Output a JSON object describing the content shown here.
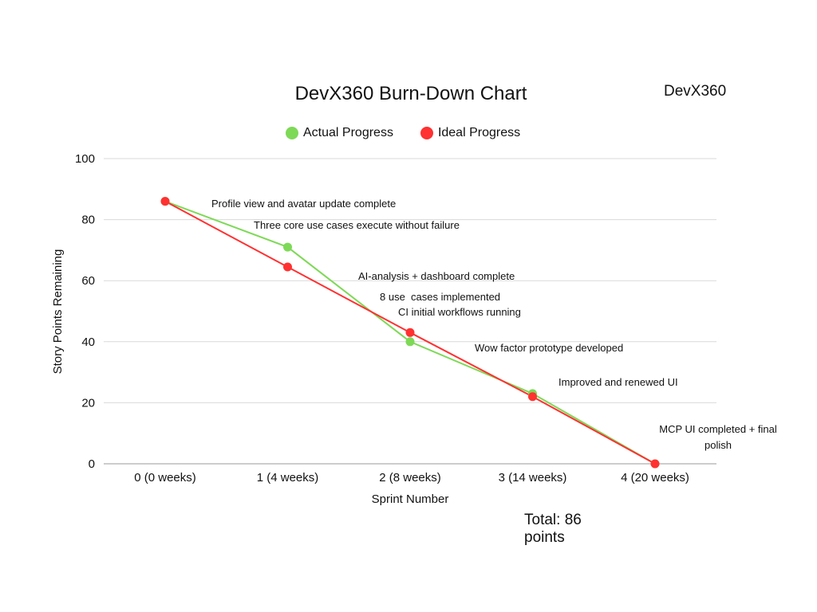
{
  "brand": "DevX360",
  "total": "Total: 86 points",
  "legend": [
    {
      "label": "Actual Progress",
      "color": "#7ed957"
    },
    {
      "label": "Ideal Progress",
      "color": "#ff3131"
    }
  ],
  "chart_data": {
    "type": "line",
    "title": "DevX360 Burn-Down Chart",
    "xlabel": "Sprint Number",
    "ylabel": "Story Points Remaining",
    "categories": [
      "0 (0 weeks)",
      "1 (4 weeks)",
      "2 (8 weeks)",
      "3 (14 weeks)",
      "4 (20 weeks)"
    ],
    "ylim": [
      0,
      100
    ],
    "yticks": [
      0,
      20,
      40,
      60,
      80,
      100
    ],
    "grid": true,
    "legend_position": "top",
    "series": [
      {
        "name": "Actual Progress",
        "color": "#7ed957",
        "values": [
          86,
          71,
          40,
          23,
          0
        ]
      },
      {
        "name": "Ideal Progress",
        "color": "#ff3131",
        "values": [
          86,
          64.5,
          43,
          22,
          0
        ]
      }
    ],
    "annotations": [
      {
        "text": "Profile view and avatar update complete"
      },
      {
        "text": "Three core use cases execute without failure"
      },
      {
        "text": "AI-analysis + dashboard complete"
      },
      {
        "text": "8 use  cases implemented"
      },
      {
        "text": "CI initial workflows running"
      },
      {
        "text": "Wow factor prototype developed"
      },
      {
        "text": "Improved and renewed UI"
      },
      {
        "text": "MCP UI completed + final"
      },
      {
        "text": "polish"
      }
    ]
  }
}
